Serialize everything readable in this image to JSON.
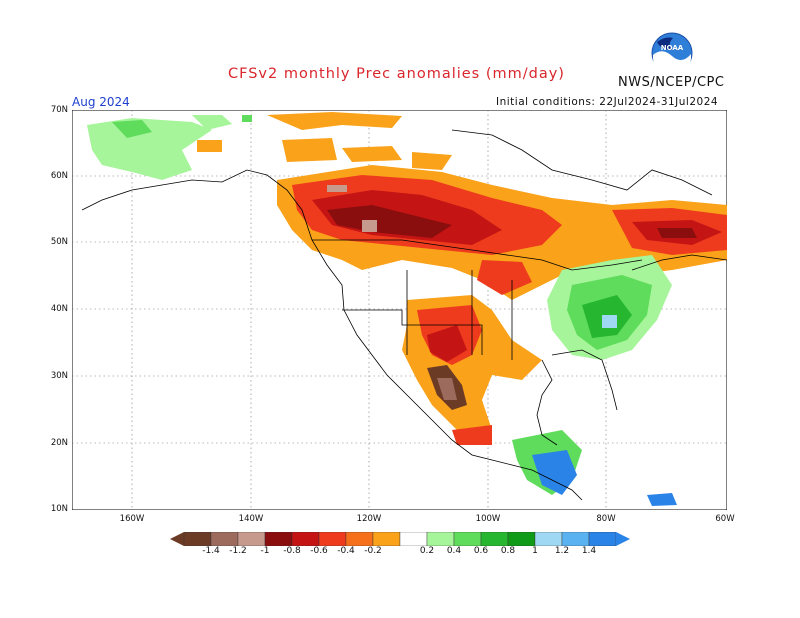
{
  "header": {
    "title": "CFSv2 monthly Prec anomalies (mm/day)",
    "agency": "NWS/NCEP/CPC",
    "month": "Aug 2024",
    "initial_conditions": "Initial conditions: 22Jul2024-31Jul2024",
    "logo_text": "NOAA"
  },
  "axes": {
    "lat_labels": [
      "70N",
      "60N",
      "50N",
      "40N",
      "30N",
      "20N",
      "10N"
    ],
    "lon_labels": [
      "160W",
      "140W",
      "120W",
      "100W",
      "80W",
      "60W"
    ]
  },
  "colorbar": {
    "labels": [
      "-1.4",
      "-1.2",
      "-1",
      "-0.8",
      "-0.6",
      "-0.4",
      "-0.2",
      "0.2",
      "0.4",
      "0.6",
      "0.8",
      "1",
      "1.2",
      "1.4"
    ],
    "colors": [
      "#6b3b26",
      "#9c6b5e",
      "#c79a8e",
      "#8b0e0e",
      "#c41414",
      "#ee3b1d",
      "#f6701c",
      "#faa21a",
      "#ffffff",
      "#a6f59a",
      "#5fdc5b",
      "#27b62f",
      "#0f9a17",
      "#9fd8f2",
      "#5ab2f0",
      "#2a83e6"
    ]
  },
  "palette": {
    "dry_extreme": "#6b3b26",
    "dry_strong": "#8b0e0e",
    "dry_moderate": "#ee3b1d",
    "dry_weak": "#faa21a",
    "wet_weak": "#a6f59a",
    "wet_moderate": "#5fdc5b",
    "wet_strong": "#0f9a17",
    "wet_extreme": "#2a83e6"
  },
  "icons": {
    "logo": "noaa-logo-icon"
  }
}
